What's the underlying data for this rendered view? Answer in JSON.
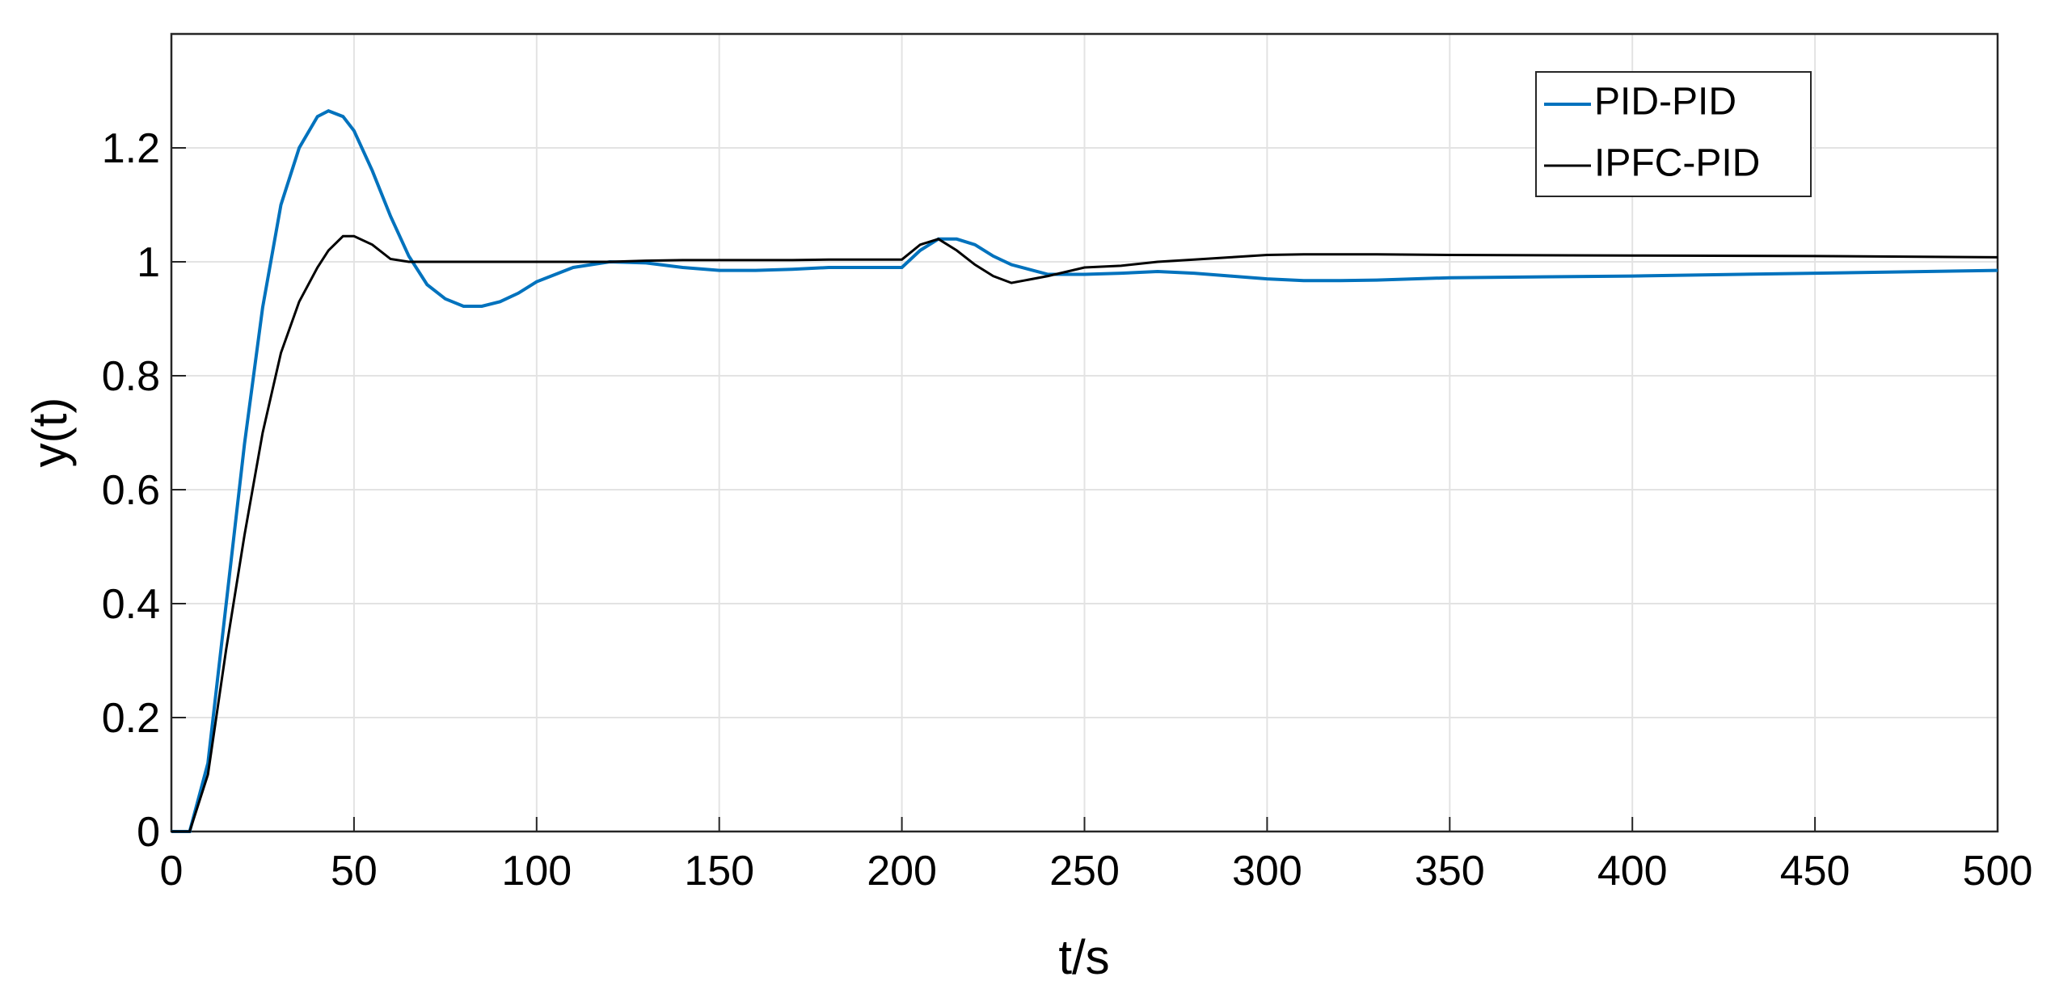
{
  "chart_data": {
    "type": "line",
    "x_label": "t/s",
    "y_label": "y(t)",
    "x": [
      0,
      5,
      10,
      15,
      20,
      25,
      30,
      35,
      40,
      43,
      47,
      50,
      55,
      60,
      65,
      70,
      75,
      80,
      85,
      90,
      95,
      100,
      110,
      120,
      130,
      140,
      150,
      160,
      170,
      180,
      190,
      200,
      205,
      210,
      215,
      220,
      225,
      230,
      240,
      250,
      260,
      270,
      280,
      290,
      300,
      310,
      320,
      330,
      350,
      400,
      450,
      500
    ],
    "series": [
      {
        "name": "PID-PID",
        "color": "#0072bd",
        "values": [
          0,
          0,
          0.12,
          0.4,
          0.68,
          0.92,
          1.1,
          1.2,
          1.255,
          1.265,
          1.255,
          1.23,
          1.16,
          1.08,
          1.01,
          0.96,
          0.935,
          0.922,
          0.922,
          0.93,
          0.945,
          0.965,
          0.99,
          1.0,
          0.998,
          0.99,
          0.985,
          0.985,
          0.987,
          0.99,
          0.99,
          0.99,
          1.02,
          1.04,
          1.04,
          1.03,
          1.01,
          0.995,
          0.978,
          0.978,
          0.98,
          0.983,
          0.98,
          0.975,
          0.97,
          0.967,
          0.967,
          0.968,
          0.972,
          0.975,
          0.98,
          0.985
        ]
      },
      {
        "name": "IPFC-PID",
        "color": "#000000",
        "values": [
          0,
          0,
          0.1,
          0.32,
          0.52,
          0.7,
          0.84,
          0.93,
          0.99,
          1.02,
          1.045,
          1.045,
          1.03,
          1.005,
          1.0,
          1.0,
          1.0,
          1.0,
          1.0,
          1.0,
          1.0,
          1.0,
          1.0,
          1.0,
          1.002,
          1.003,
          1.003,
          1.003,
          1.003,
          1.004,
          1.004,
          1.004,
          1.03,
          1.04,
          1.02,
          0.995,
          0.975,
          0.963,
          0.975,
          0.99,
          0.993,
          1.0,
          1.004,
          1.008,
          1.012,
          1.013,
          1.013,
          1.013,
          1.012,
          1.011,
          1.01,
          1.008
        ]
      }
    ],
    "xlim": [
      0,
      500
    ],
    "xticks": [
      0,
      50,
      100,
      150,
      200,
      250,
      300,
      350,
      400,
      450,
      500
    ],
    "ylim": [
      0,
      1.4
    ],
    "yticks": [
      0,
      0.2,
      0.4,
      0.6,
      0.8,
      1,
      1.2
    ],
    "grid": true,
    "legend": "northeast"
  }
}
